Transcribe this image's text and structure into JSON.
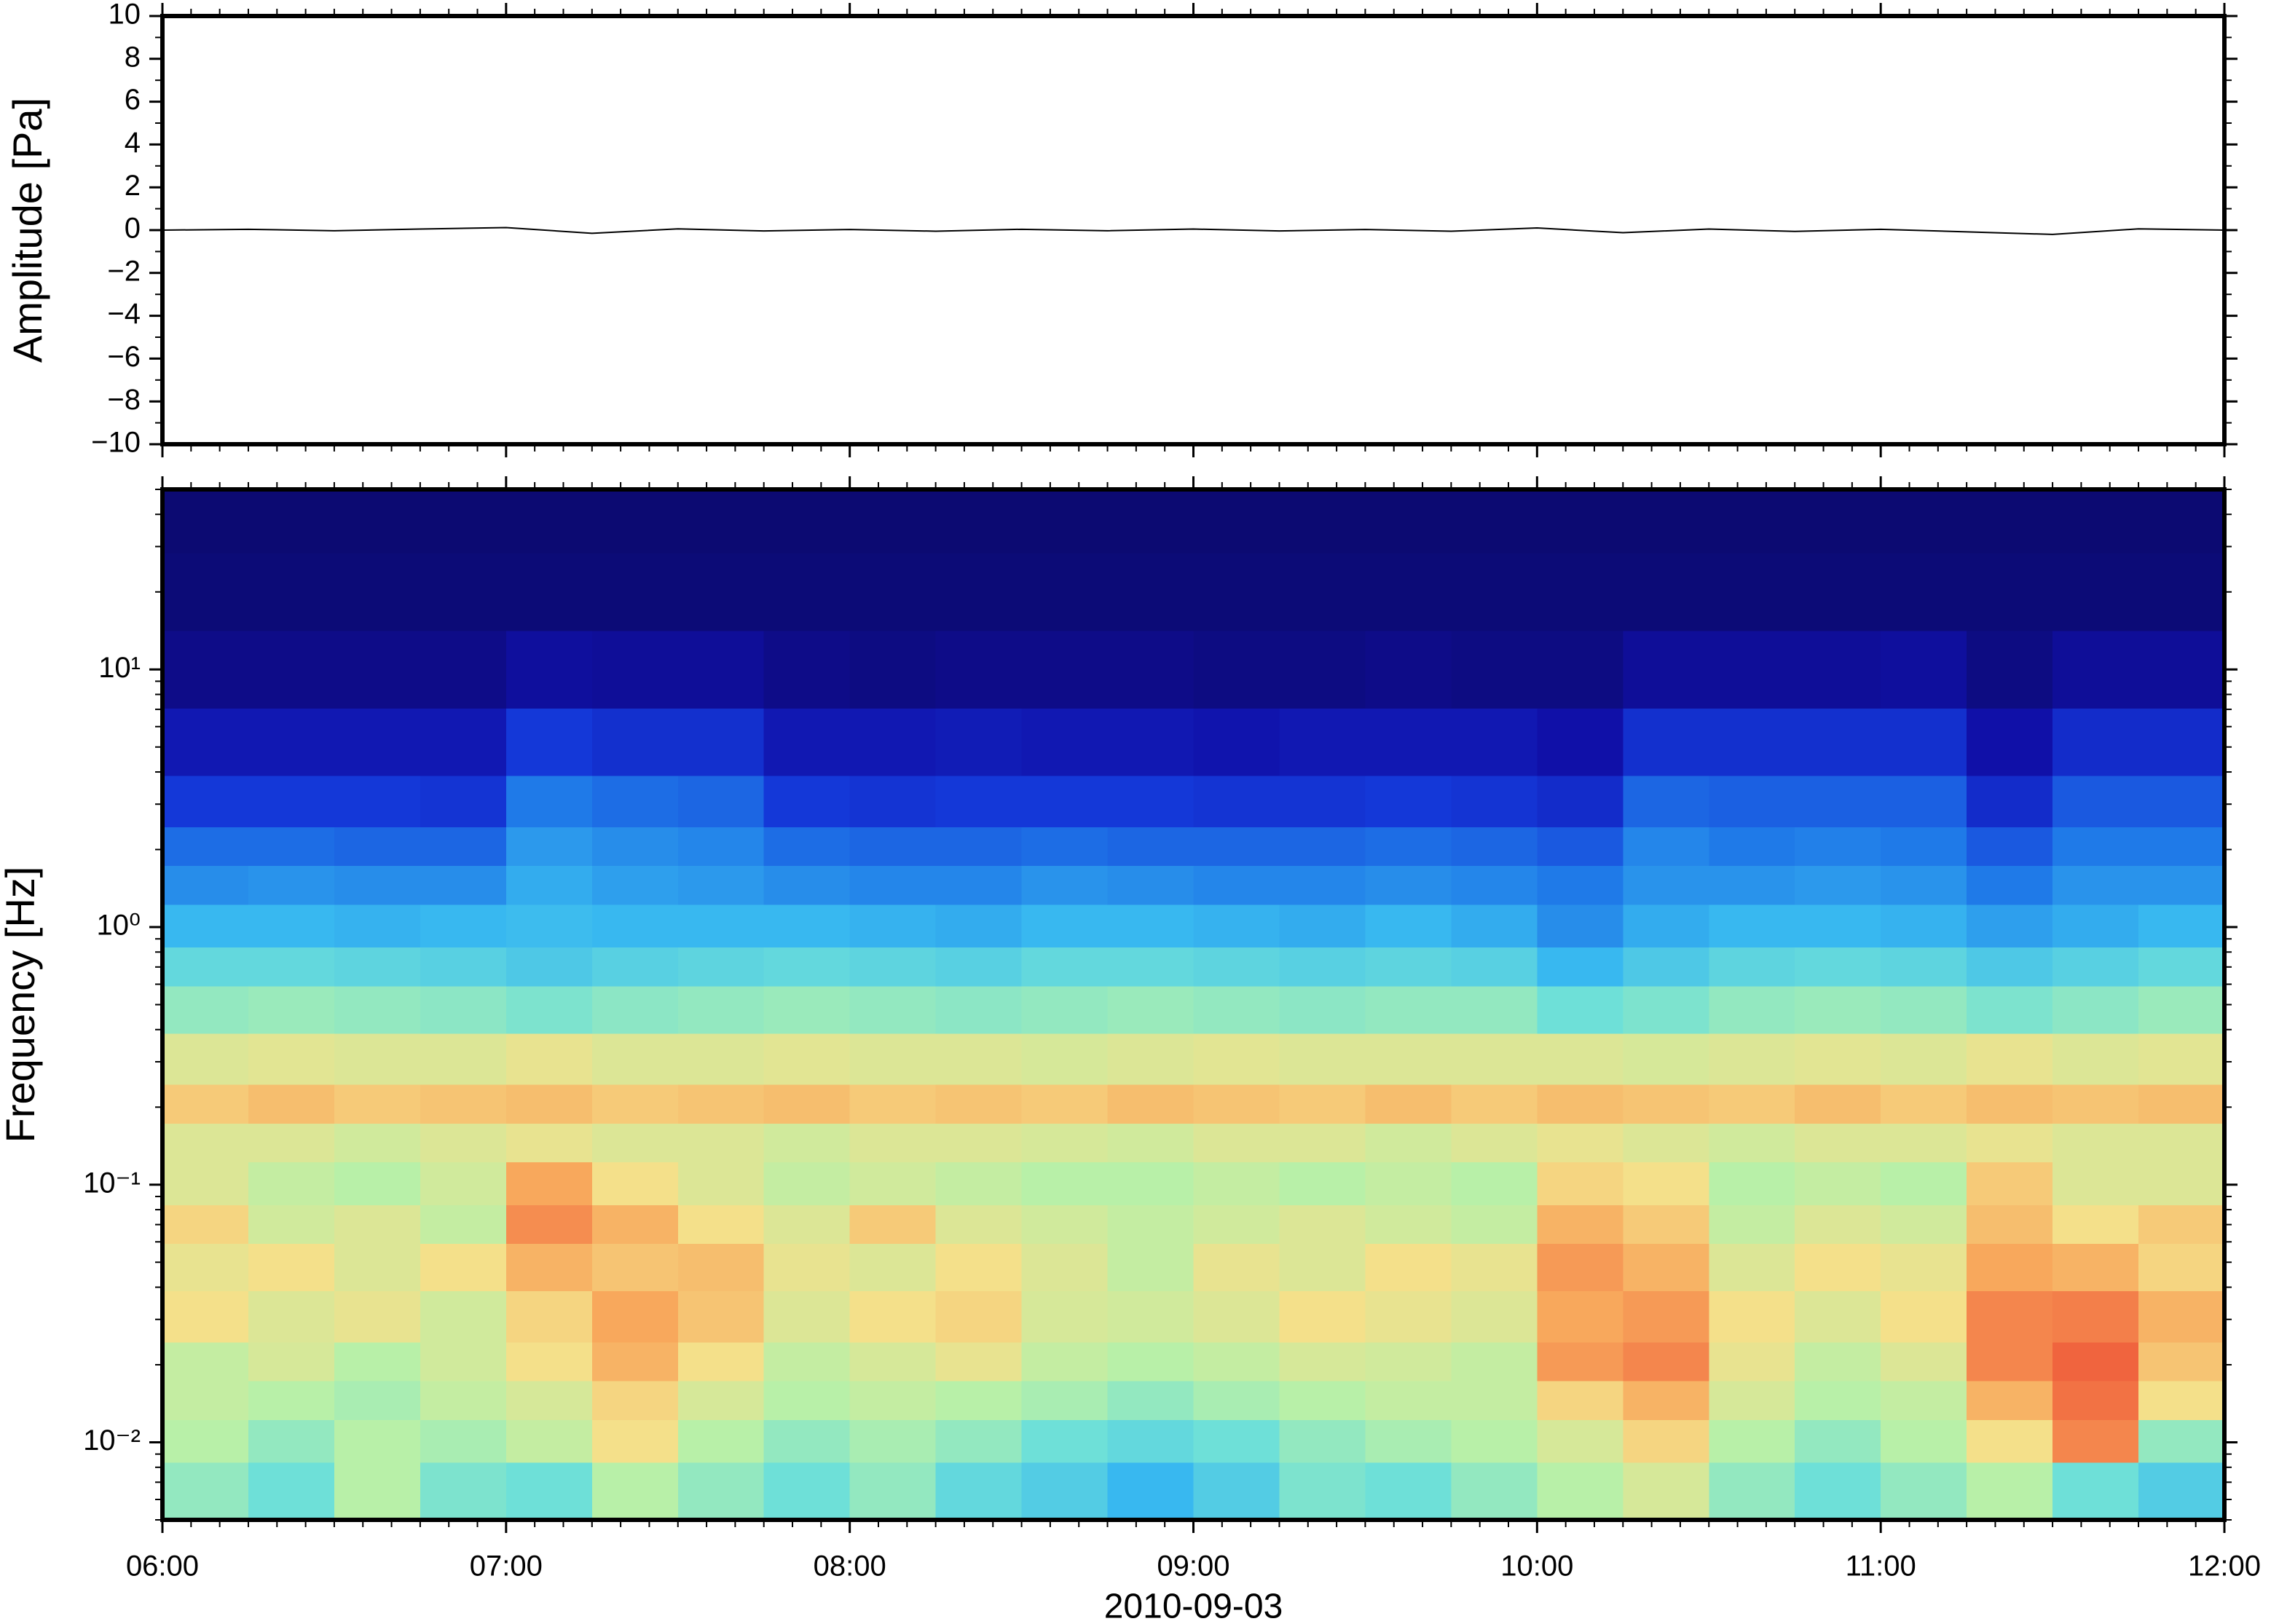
{
  "chart_data": [
    {
      "type": "line",
      "ylabel": "Amplitude [Pa]",
      "x": [
        6,
        6.25,
        6.5,
        6.75,
        7,
        7.25,
        7.5,
        7.75,
        8,
        8.25,
        8.5,
        8.75,
        9,
        9.25,
        9.5,
        9.75,
        10,
        10.25,
        10.5,
        10.75,
        11,
        11.25,
        11.5,
        11.75,
        12
      ],
      "values": [
        0,
        0.04,
        -0.03,
        0.05,
        0.12,
        -0.15,
        0.06,
        -0.04,
        0.03,
        -0.05,
        0.04,
        -0.03,
        0.05,
        -0.04,
        0.03,
        -0.05,
        0.1,
        -0.12,
        0.05,
        -0.06,
        0.04,
        -0.08,
        -0.2,
        0.06,
        0
      ],
      "color": "#000000",
      "xlim": [
        6,
        12
      ],
      "xticks": [
        6,
        7,
        8,
        9,
        10,
        11,
        12
      ],
      "ylim": [
        -10,
        10
      ],
      "yticks": [
        {
          "value": -10,
          "label": "−10"
        },
        {
          "value": -8,
          "label": "−8"
        },
        {
          "value": -6,
          "label": "−6"
        },
        {
          "value": -4,
          "label": "−4"
        },
        {
          "value": -2,
          "label": "−2"
        },
        0,
        2,
        4,
        6,
        8,
        10
      ]
    },
    {
      "type": "heatmap",
      "ylabel": "Frequency [Hz]",
      "xlabel": "2010-09-03",
      "x": [
        6.125,
        6.375,
        6.625,
        6.875,
        7.125,
        7.375,
        7.625,
        7.875,
        8.125,
        8.375,
        8.625,
        8.875,
        9.125,
        9.375,
        9.625,
        9.875,
        10.125,
        10.375,
        10.625,
        10.875,
        11.125,
        11.375,
        11.625,
        11.875
      ],
      "y": [
        0.007,
        0.01,
        0.015,
        0.02,
        0.03,
        0.05,
        0.07,
        0.1,
        0.15,
        0.2,
        0.3,
        0.5,
        0.7,
        1,
        1.5,
        2,
        3,
        5,
        10,
        20,
        40
      ],
      "z": [
        [
          0.55,
          0.5,
          0.6,
          0.52,
          0.5,
          0.6,
          0.55,
          0.5,
          0.55,
          0.48,
          0.45,
          0.4,
          0.45,
          0.52,
          0.5,
          0.55,
          0.6,
          0.65,
          0.55,
          0.5,
          0.55,
          0.6,
          0.5,
          0.45
        ],
        [
          0.6,
          0.55,
          0.6,
          0.58,
          0.62,
          0.7,
          0.6,
          0.55,
          0.58,
          0.55,
          0.5,
          0.48,
          0.5,
          0.55,
          0.58,
          0.6,
          0.65,
          0.72,
          0.6,
          0.55,
          0.6,
          0.7,
          0.85,
          0.55
        ],
        [
          0.62,
          0.6,
          0.58,
          0.62,
          0.65,
          0.72,
          0.65,
          0.6,
          0.62,
          0.6,
          0.58,
          0.55,
          0.58,
          0.6,
          0.62,
          0.62,
          0.72,
          0.78,
          0.65,
          0.6,
          0.62,
          0.78,
          0.88,
          0.7
        ],
        [
          0.62,
          0.65,
          0.6,
          0.64,
          0.7,
          0.78,
          0.7,
          0.62,
          0.65,
          0.68,
          0.62,
          0.6,
          0.62,
          0.65,
          0.64,
          0.62,
          0.82,
          0.85,
          0.68,
          0.62,
          0.66,
          0.85,
          0.9,
          0.75
        ],
        [
          0.7,
          0.66,
          0.68,
          0.64,
          0.72,
          0.8,
          0.75,
          0.66,
          0.7,
          0.72,
          0.65,
          0.64,
          0.66,
          0.7,
          0.68,
          0.66,
          0.8,
          0.82,
          0.7,
          0.66,
          0.7,
          0.85,
          0.86,
          0.78
        ],
        [
          0.68,
          0.7,
          0.66,
          0.7,
          0.78,
          0.75,
          0.76,
          0.68,
          0.66,
          0.7,
          0.66,
          0.62,
          0.68,
          0.66,
          0.7,
          0.68,
          0.82,
          0.78,
          0.66,
          0.7,
          0.68,
          0.8,
          0.78,
          0.72
        ],
        [
          0.72,
          0.64,
          0.66,
          0.62,
          0.84,
          0.78,
          0.7,
          0.66,
          0.74,
          0.66,
          0.64,
          0.62,
          0.64,
          0.66,
          0.64,
          0.62,
          0.78,
          0.74,
          0.62,
          0.66,
          0.64,
          0.76,
          0.7,
          0.74
        ],
        [
          0.66,
          0.62,
          0.6,
          0.64,
          0.8,
          0.7,
          0.66,
          0.62,
          0.64,
          0.62,
          0.6,
          0.6,
          0.62,
          0.6,
          0.62,
          0.6,
          0.72,
          0.7,
          0.6,
          0.62,
          0.6,
          0.74,
          0.66,
          0.66
        ],
        [
          0.66,
          0.66,
          0.64,
          0.66,
          0.68,
          0.66,
          0.66,
          0.64,
          0.66,
          0.66,
          0.65,
          0.64,
          0.66,
          0.66,
          0.64,
          0.66,
          0.68,
          0.66,
          0.64,
          0.66,
          0.66,
          0.68,
          0.66,
          0.66
        ],
        [
          0.74,
          0.76,
          0.74,
          0.75,
          0.76,
          0.74,
          0.75,
          0.76,
          0.74,
          0.75,
          0.74,
          0.76,
          0.75,
          0.74,
          0.76,
          0.74,
          0.76,
          0.75,
          0.74,
          0.76,
          0.74,
          0.76,
          0.75,
          0.76
        ],
        [
          0.66,
          0.67,
          0.66,
          0.66,
          0.68,
          0.66,
          0.66,
          0.67,
          0.66,
          0.66,
          0.65,
          0.66,
          0.67,
          0.66,
          0.66,
          0.66,
          0.66,
          0.65,
          0.66,
          0.67,
          0.66,
          0.68,
          0.66,
          0.67
        ],
        [
          0.55,
          0.56,
          0.55,
          0.54,
          0.52,
          0.54,
          0.55,
          0.56,
          0.55,
          0.54,
          0.55,
          0.56,
          0.55,
          0.54,
          0.55,
          0.55,
          0.5,
          0.52,
          0.55,
          0.56,
          0.55,
          0.52,
          0.54,
          0.56
        ],
        [
          0.48,
          0.48,
          0.47,
          0.46,
          0.44,
          0.46,
          0.47,
          0.48,
          0.47,
          0.46,
          0.48,
          0.48,
          0.47,
          0.46,
          0.47,
          0.46,
          0.4,
          0.44,
          0.47,
          0.48,
          0.47,
          0.44,
          0.46,
          0.48
        ],
        [
          0.4,
          0.4,
          0.39,
          0.4,
          0.41,
          0.4,
          0.4,
          0.4,
          0.39,
          0.38,
          0.4,
          0.4,
          0.39,
          0.38,
          0.4,
          0.38,
          0.33,
          0.38,
          0.4,
          0.4,
          0.39,
          0.36,
          0.38,
          0.4
        ],
        [
          0.33,
          0.34,
          0.33,
          0.33,
          0.38,
          0.36,
          0.35,
          0.33,
          0.32,
          0.32,
          0.34,
          0.33,
          0.32,
          0.32,
          0.33,
          0.32,
          0.3,
          0.34,
          0.34,
          0.35,
          0.34,
          0.3,
          0.34,
          0.34
        ],
        [
          0.28,
          0.28,
          0.27,
          0.27,
          0.35,
          0.33,
          0.32,
          0.28,
          0.27,
          0.27,
          0.28,
          0.27,
          0.27,
          0.27,
          0.28,
          0.27,
          0.25,
          0.32,
          0.3,
          0.31,
          0.3,
          0.25,
          0.3,
          0.3
        ],
        [
          0.2,
          0.2,
          0.2,
          0.19,
          0.3,
          0.28,
          0.27,
          0.2,
          0.19,
          0.2,
          0.2,
          0.2,
          0.19,
          0.19,
          0.2,
          0.19,
          0.17,
          0.27,
          0.26,
          0.26,
          0.26,
          0.17,
          0.25,
          0.25
        ],
        [
          0.12,
          0.12,
          0.12,
          0.12,
          0.2,
          0.18,
          0.18,
          0.12,
          0.12,
          0.13,
          0.12,
          0.12,
          0.11,
          0.12,
          0.12,
          0.12,
          0.1,
          0.18,
          0.18,
          0.18,
          0.18,
          0.1,
          0.17,
          0.17
        ],
        [
          0.04,
          0.04,
          0.04,
          0.04,
          0.08,
          0.07,
          0.07,
          0.04,
          0.03,
          0.04,
          0.04,
          0.04,
          0.03,
          0.03,
          0.04,
          0.03,
          0.03,
          0.07,
          0.07,
          0.07,
          0.08,
          0.03,
          0.07,
          0.07
        ],
        [
          0.01,
          0.01,
          0.01,
          0.01,
          0.01,
          0.01,
          0.01,
          0.01,
          0.01,
          0.01,
          0.01,
          0.01,
          0.01,
          0.01,
          0.01,
          0.01,
          0.01,
          0.01,
          0.01,
          0.01,
          0.01,
          0.01,
          0.01,
          0.01
        ],
        [
          0,
          0,
          0,
          0,
          0,
          0,
          0,
          0,
          0,
          0,
          0,
          0,
          0,
          0,
          0,
          0,
          0,
          0,
          0,
          0,
          0,
          0,
          0,
          0
        ]
      ],
      "zlim": [
        0,
        1
      ],
      "colormap": [
        "#0c0a72",
        "#1010a8",
        "#1438d8",
        "#1f7ae8",
        "#38b8f0",
        "#6ee0d8",
        "#b8f0a8",
        "#f4e08a",
        "#f8a85c",
        "#f0643e",
        "#d8202e"
      ],
      "xlim": [
        6,
        12
      ],
      "xticks": [
        {
          "value": 6,
          "label": "06:00"
        },
        {
          "value": 7,
          "label": "07:00"
        },
        {
          "value": 8,
          "label": "08:00"
        },
        {
          "value": 9,
          "label": "09:00"
        },
        {
          "value": 10,
          "label": "10:00"
        },
        {
          "value": 11,
          "label": "11:00"
        },
        {
          "value": 12,
          "label": "12:00"
        }
      ],
      "ylim": [
        0.005,
        50
      ],
      "yscale": "log",
      "yticks": [
        {
          "value": 0.01,
          "label": "10⁻²"
        },
        {
          "value": 0.1,
          "label": "10⁻¹"
        },
        {
          "value": 1,
          "label": "10⁰"
        },
        {
          "value": 10,
          "label": "10¹"
        }
      ]
    }
  ]
}
